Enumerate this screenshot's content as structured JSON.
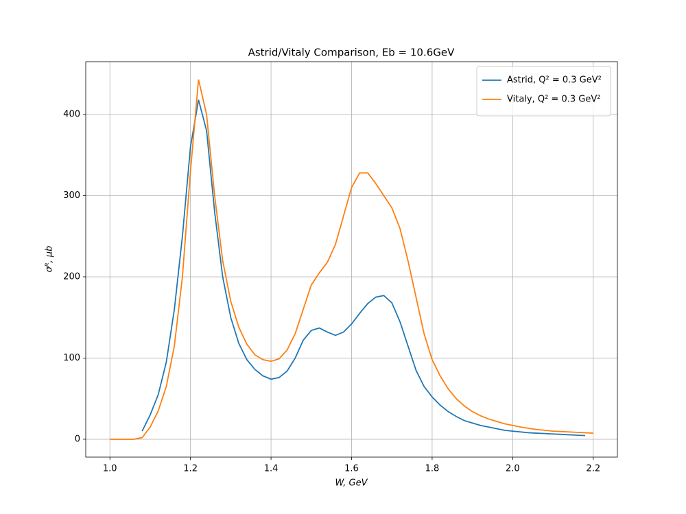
{
  "chart_data": {
    "type": "line",
    "title": "Astrid/Vitaly Comparison, Eb = 10.6GeV",
    "x_label": "W, GeV",
    "y_label": "σᴿ, μb",
    "x": [
      1.0,
      1.02,
      1.04,
      1.06,
      1.08,
      1.1,
      1.12,
      1.14,
      1.16,
      1.18,
      1.2,
      1.22,
      1.24,
      1.26,
      1.28,
      1.3,
      1.32,
      1.34,
      1.36,
      1.38,
      1.4,
      1.42,
      1.44,
      1.46,
      1.48,
      1.5,
      1.52,
      1.54,
      1.56,
      1.58,
      1.6,
      1.62,
      1.64,
      1.66,
      1.68,
      1.7,
      1.72,
      1.74,
      1.76,
      1.78,
      1.8,
      1.82,
      1.84,
      1.86,
      1.88,
      1.9,
      1.92,
      1.94,
      1.96,
      1.98,
      2.0,
      2.02,
      2.04,
      2.06,
      2.08,
      2.1,
      2.12,
      2.14,
      2.16,
      2.18,
      2.2
    ],
    "series": [
      {
        "name": "Astrid, Q² = 0.3 GeV²",
        "color": "#1f77b4",
        "values": [
          null,
          null,
          null,
          null,
          10,
          30,
          55,
          95,
          160,
          250,
          360,
          418,
          380,
          280,
          200,
          150,
          118,
          98,
          86,
          78,
          74,
          76,
          84,
          100,
          122,
          134,
          137,
          132,
          128,
          132,
          142,
          155,
          167,
          175,
          177,
          168,
          145,
          115,
          85,
          65,
          52,
          42,
          34,
          28,
          23,
          20,
          17,
          15,
          13,
          11,
          10,
          9,
          8,
          7.5,
          7,
          6.5,
          6,
          5.5,
          5,
          4.5,
          null
        ]
      },
      {
        "name": "Vitaly, Q² = 0.3 GeV²",
        "color": "#ff7f0e",
        "values": [
          0,
          0,
          0,
          0,
          2,
          15,
          35,
          65,
          115,
          200,
          330,
          443,
          400,
          300,
          220,
          170,
          138,
          117,
          104,
          98,
          96,
          99,
          110,
          130,
          160,
          190,
          205,
          218,
          240,
          275,
          310,
          328,
          328,
          315,
          300,
          285,
          260,
          220,
          175,
          130,
          98,
          78,
          62,
          50,
          41,
          34,
          29,
          25,
          22,
          19,
          17,
          15,
          13.5,
          12,
          11,
          10,
          9.5,
          9,
          8.5,
          8,
          7.5
        ]
      }
    ],
    "xlim": [
      0.94,
      2.26
    ],
    "ylim": [
      -22,
      465
    ],
    "xticks": [
      {
        "value": 1,
        "label": "1.0"
      },
      1.2,
      1.4,
      1.6,
      1.8,
      {
        "value": 2,
        "label": "2.0"
      },
      2.2
    ],
    "yticks": [
      0,
      100,
      200,
      300,
      400
    ],
    "grid": true,
    "legend": "upper-right"
  }
}
